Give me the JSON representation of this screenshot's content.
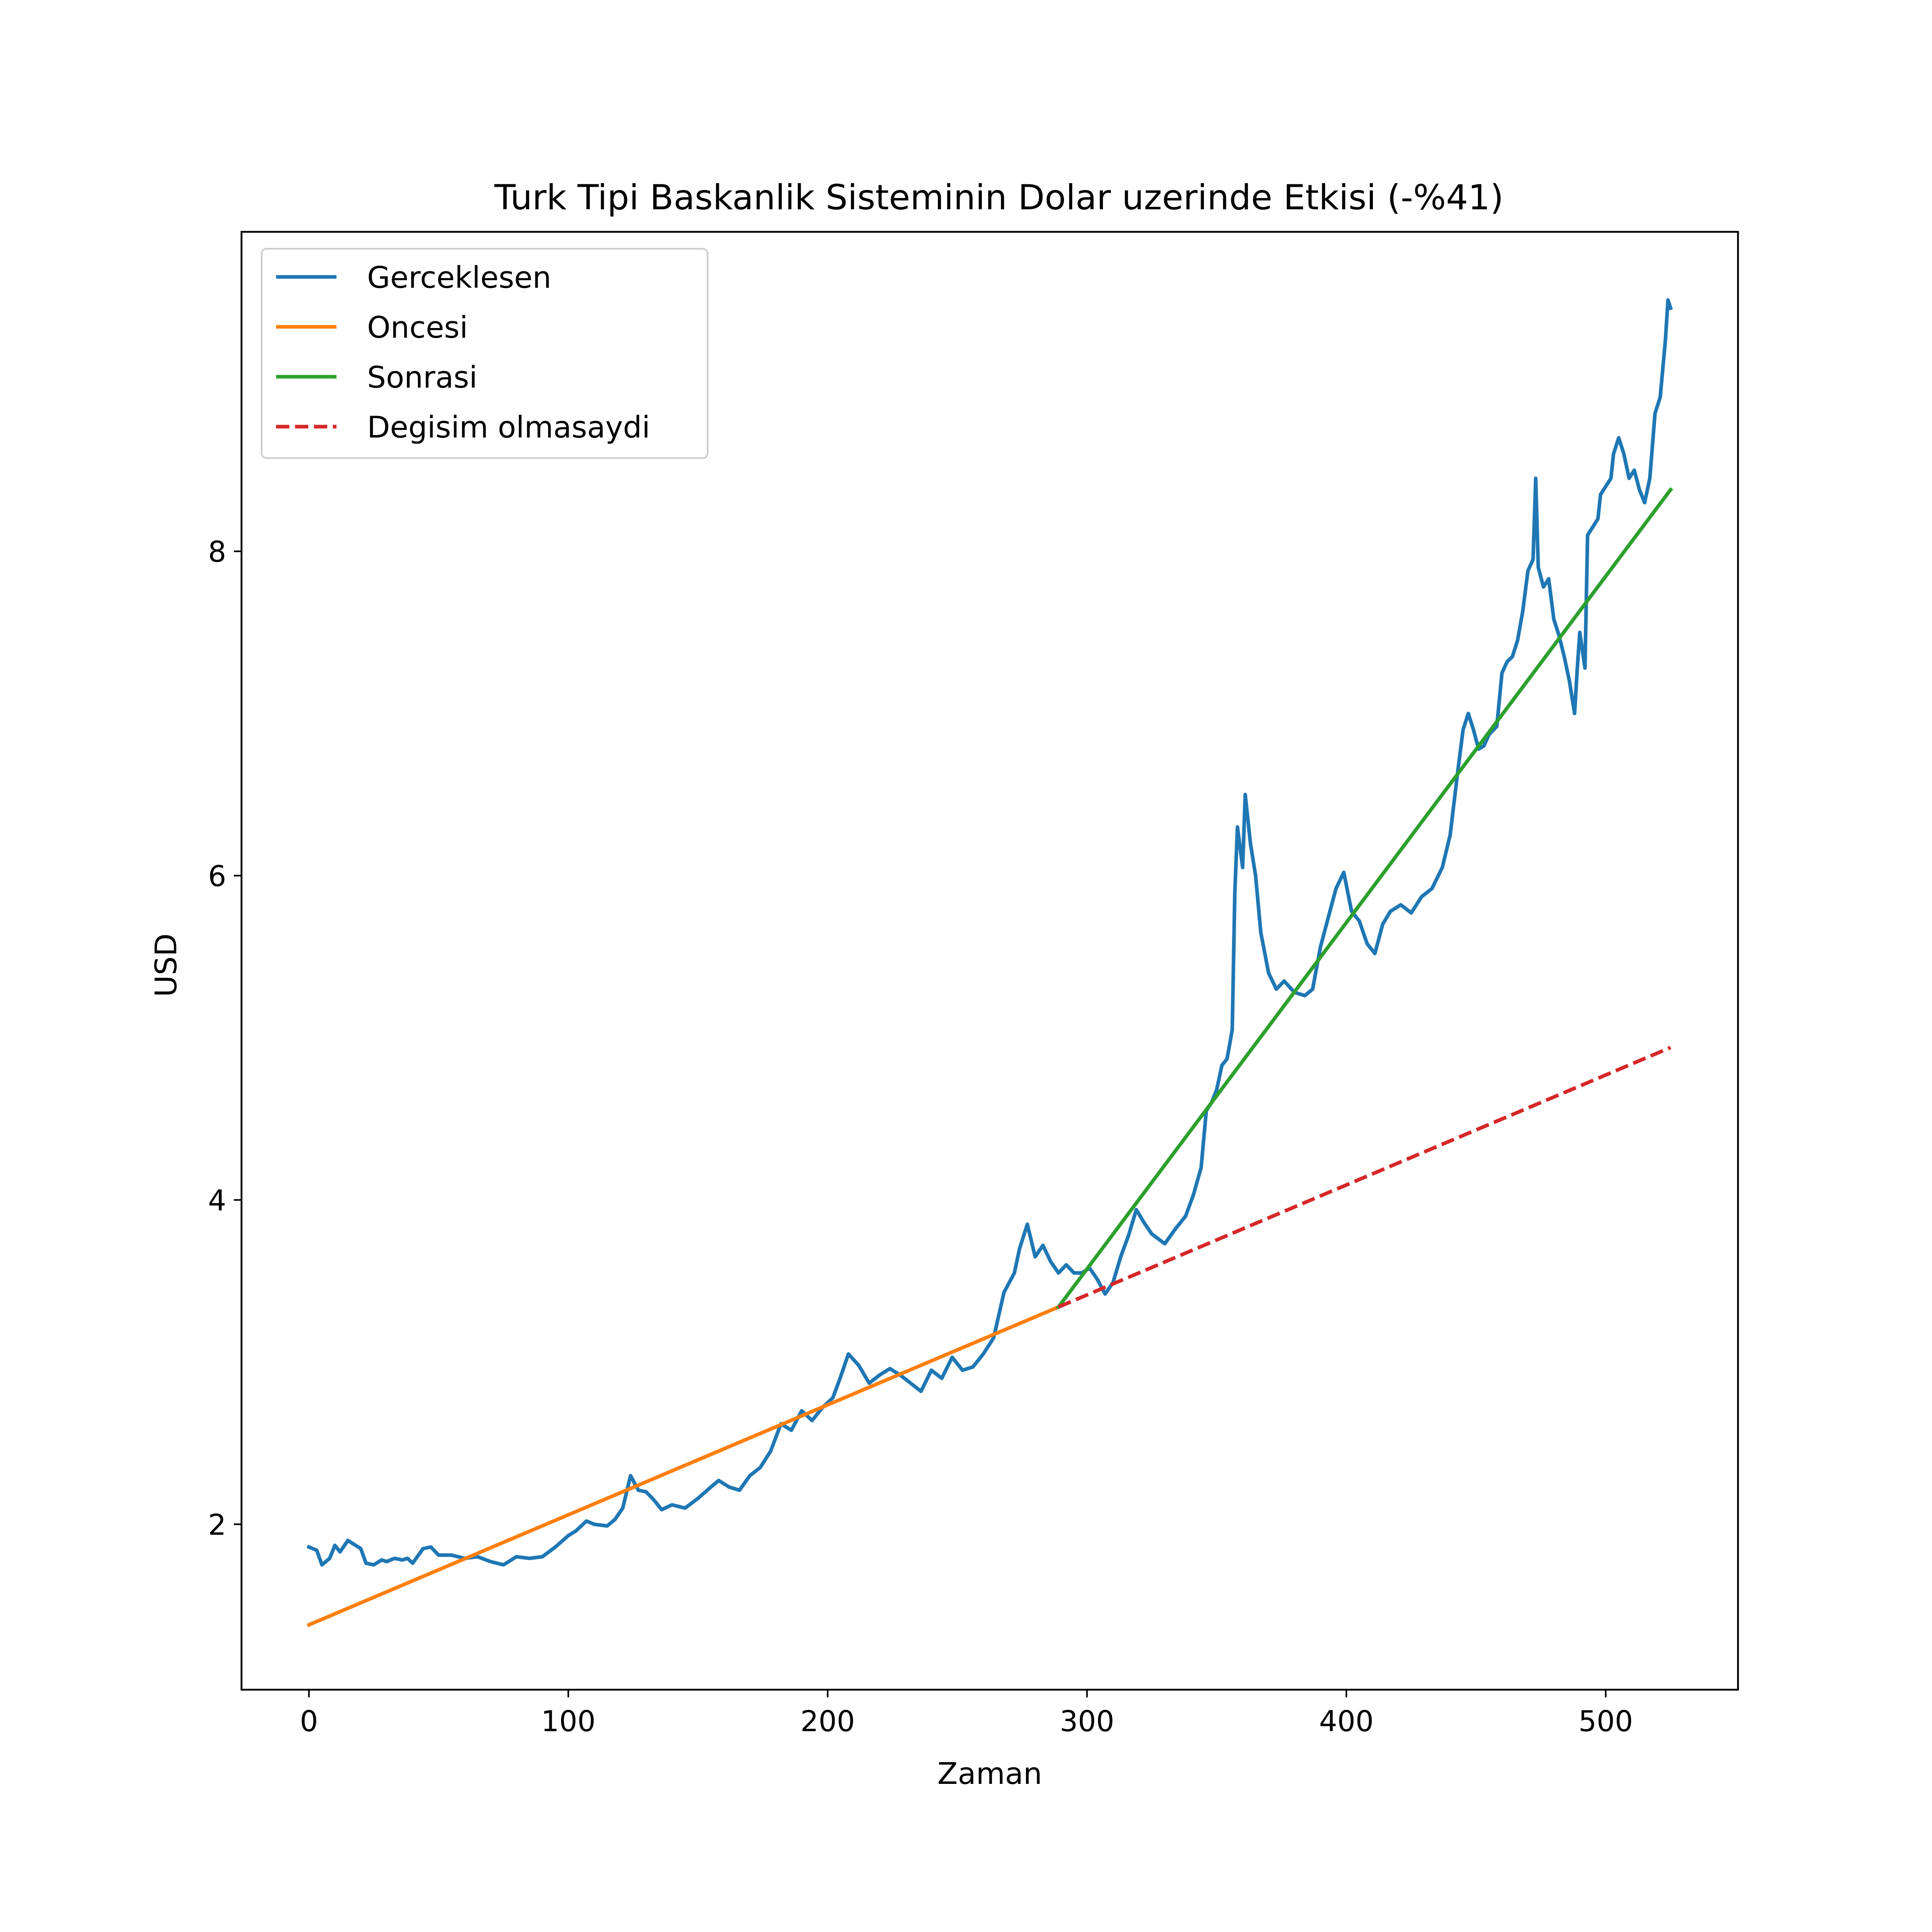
{
  "chart_data": {
    "type": "line",
    "title": "Turk Tipi Baskanlik Sisteminin Dolar uzerinde Etkisi (-%41)",
    "xlabel": "Zaman",
    "ylabel": "USD",
    "xlim": [
      -26,
      551
    ],
    "ylim": [
      0.98,
      9.97
    ],
    "x_ticks": [
      0,
      100,
      200,
      300,
      400,
      500
    ],
    "y_ticks": [
      2,
      4,
      6,
      8
    ],
    "grid": false,
    "legend_position": "top-left",
    "series": [
      {
        "name": "Gerceklesen",
        "color": "#1f77b4",
        "style": "solid",
        "points": [
          [
            0,
            1.86
          ],
          [
            3,
            1.84
          ],
          [
            5,
            1.75
          ],
          [
            8,
            1.79
          ],
          [
            10,
            1.87
          ],
          [
            12,
            1.83
          ],
          [
            15,
            1.9
          ],
          [
            18,
            1.87
          ],
          [
            20,
            1.85
          ],
          [
            22,
            1.76
          ],
          [
            25,
            1.75
          ],
          [
            28,
            1.78
          ],
          [
            30,
            1.77
          ],
          [
            33,
            1.79
          ],
          [
            36,
            1.78
          ],
          [
            38,
            1.79
          ],
          [
            40,
            1.76
          ],
          [
            44,
            1.85
          ],
          [
            47,
            1.86
          ],
          [
            50,
            1.81
          ],
          [
            55,
            1.81
          ],
          [
            60,
            1.79
          ],
          [
            65,
            1.8
          ],
          [
            70,
            1.77
          ],
          [
            75,
            1.75
          ],
          [
            80,
            1.8
          ],
          [
            85,
            1.79
          ],
          [
            90,
            1.8
          ],
          [
            95,
            1.86
          ],
          [
            100,
            1.93
          ],
          [
            103,
            1.96
          ],
          [
            107,
            2.02
          ],
          [
            110,
            2.0
          ],
          [
            115,
            1.99
          ],
          [
            118,
            2.03
          ],
          [
            121,
            2.1
          ],
          [
            124,
            2.3
          ],
          [
            127,
            2.21
          ],
          [
            130,
            2.2
          ],
          [
            133,
            2.15
          ],
          [
            136,
            2.09
          ],
          [
            140,
            2.12
          ],
          [
            145,
            2.1
          ],
          [
            150,
            2.16
          ],
          [
            155,
            2.23
          ],
          [
            158,
            2.27
          ],
          [
            162,
            2.23
          ],
          [
            166,
            2.21
          ],
          [
            170,
            2.3
          ],
          [
            174,
            2.35
          ],
          [
            178,
            2.45
          ],
          [
            182,
            2.62
          ],
          [
            186,
            2.58
          ],
          [
            190,
            2.7
          ],
          [
            194,
            2.64
          ],
          [
            198,
            2.72
          ],
          [
            202,
            2.78
          ],
          [
            205,
            2.91
          ],
          [
            208,
            3.05
          ],
          [
            212,
            2.98
          ],
          [
            216,
            2.87
          ],
          [
            220,
            2.92
          ],
          [
            224,
            2.96
          ],
          [
            228,
            2.92
          ],
          [
            232,
            2.87
          ],
          [
            236,
            2.82
          ],
          [
            240,
            2.95
          ],
          [
            244,
            2.9
          ],
          [
            248,
            3.03
          ],
          [
            252,
            2.95
          ],
          [
            256,
            2.97
          ],
          [
            260,
            3.05
          ],
          [
            264,
            3.15
          ],
          [
            268,
            3.43
          ],
          [
            272,
            3.55
          ],
          [
            274,
            3.7
          ],
          [
            277,
            3.85
          ],
          [
            280,
            3.65
          ],
          [
            283,
            3.72
          ],
          [
            286,
            3.62
          ],
          [
            289,
            3.55
          ],
          [
            292,
            3.6
          ],
          [
            295,
            3.55
          ],
          [
            298,
            3.55
          ],
          [
            301,
            3.58
          ],
          [
            304,
            3.51
          ],
          [
            307,
            3.42
          ],
          [
            310,
            3.49
          ],
          [
            313,
            3.65
          ],
          [
            316,
            3.78
          ],
          [
            319,
            3.94
          ],
          [
            322,
            3.86
          ],
          [
            325,
            3.79
          ],
          [
            330,
            3.73
          ],
          [
            334,
            3.82
          ],
          [
            338,
            3.9
          ],
          [
            341,
            4.03
          ],
          [
            344,
            4.2
          ],
          [
            346,
            4.55
          ],
          [
            348,
            4.6
          ],
          [
            350,
            4.68
          ],
          [
            352,
            4.83
          ],
          [
            354,
            4.87
          ],
          [
            356,
            5.05
          ],
          [
            357,
            5.9
          ],
          [
            358,
            6.3
          ],
          [
            360,
            6.05
          ],
          [
            361,
            6.5
          ],
          [
            363,
            6.2
          ],
          [
            365,
            6.0
          ],
          [
            367,
            5.65
          ],
          [
            370,
            5.4
          ],
          [
            373,
            5.3
          ],
          [
            376,
            5.35
          ],
          [
            380,
            5.28
          ],
          [
            384,
            5.26
          ],
          [
            387,
            5.3
          ],
          [
            390,
            5.56
          ],
          [
            393,
            5.74
          ],
          [
            396,
            5.92
          ],
          [
            399,
            6.02
          ],
          [
            402,
            5.78
          ],
          [
            405,
            5.72
          ],
          [
            408,
            5.58
          ],
          [
            411,
            5.52
          ],
          [
            414,
            5.7
          ],
          [
            417,
            5.78
          ],
          [
            421,
            5.82
          ],
          [
            425,
            5.77
          ],
          [
            429,
            5.87
          ],
          [
            433,
            5.92
          ],
          [
            437,
            6.05
          ],
          [
            440,
            6.25
          ],
          [
            443,
            6.65
          ],
          [
            445,
            6.9
          ],
          [
            447,
            7.0
          ],
          [
            449,
            6.9
          ],
          [
            451,
            6.78
          ],
          [
            453,
            6.8
          ],
          [
            455,
            6.87
          ],
          [
            458,
            6.92
          ],
          [
            460,
            7.25
          ],
          [
            462,
            7.32
          ],
          [
            464,
            7.35
          ],
          [
            466,
            7.45
          ],
          [
            468,
            7.63
          ],
          [
            470,
            7.88
          ],
          [
            472,
            7.95
          ],
          [
            473,
            8.45
          ],
          [
            474,
            7.9
          ],
          [
            476,
            7.78
          ],
          [
            478,
            7.83
          ],
          [
            480,
            7.58
          ],
          [
            482,
            7.48
          ],
          [
            484,
            7.35
          ],
          [
            486,
            7.2
          ],
          [
            488,
            7.0
          ],
          [
            489,
            7.27
          ],
          [
            490,
            7.5
          ],
          [
            492,
            7.28
          ],
          [
            493,
            8.1
          ],
          [
            495,
            8.15
          ],
          [
            497,
            8.2
          ],
          [
            498,
            8.35
          ],
          [
            500,
            8.4
          ],
          [
            502,
            8.45
          ],
          [
            503,
            8.6
          ],
          [
            505,
            8.7
          ],
          [
            507,
            8.6
          ],
          [
            509,
            8.45
          ],
          [
            511,
            8.5
          ],
          [
            513,
            8.38
          ],
          [
            515,
            8.3
          ],
          [
            517,
            8.45
          ],
          [
            519,
            8.85
          ],
          [
            521,
            8.95
          ],
          [
            523,
            9.3
          ],
          [
            524,
            9.55
          ],
          [
            525,
            9.5
          ]
        ]
      },
      {
        "name": "Oncesi",
        "color": "#ff7f0e",
        "style": "solid",
        "points": [
          [
            0,
            1.38
          ],
          [
            289,
            3.34
          ]
        ]
      },
      {
        "name": "Sonrasi",
        "color": "#2ca02c",
        "style": "solid",
        "points": [
          [
            289,
            3.34
          ],
          [
            525,
            8.38
          ]
        ]
      },
      {
        "name": "Degisim olmasaydi",
        "color": "#d62728",
        "style": "dashed",
        "points": [
          [
            289,
            3.34
          ],
          [
            525,
            4.94
          ]
        ]
      }
    ]
  }
}
